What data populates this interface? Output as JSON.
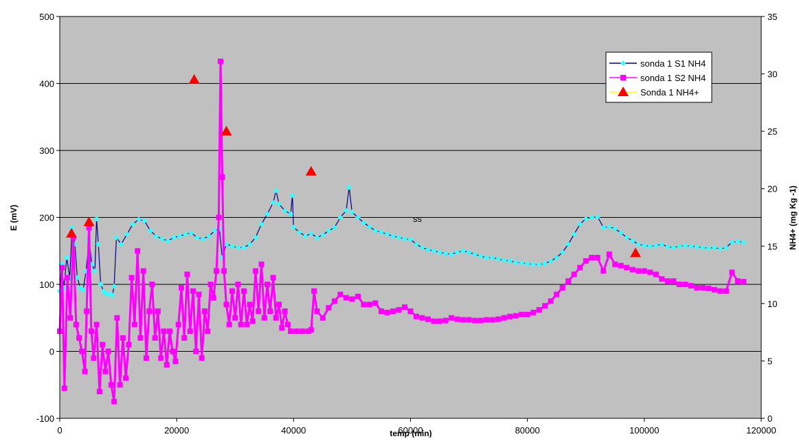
{
  "chart_data": {
    "type": "line",
    "title": "",
    "xlabel": "temp (min)",
    "ylabel": "E (mV)",
    "y2label": "NH4+ (mg Kg -1)",
    "xlim": [
      0,
      120000
    ],
    "ylim": [
      -100,
      500
    ],
    "y2lim": [
      0,
      35
    ],
    "xticks": [
      "0",
      "20000",
      "40000",
      "60000",
      "80000",
      "100000",
      "120000"
    ],
    "yticks": [
      "-100",
      "0",
      "100",
      "200",
      "300",
      "400",
      "500"
    ],
    "y2ticks": [
      "0",
      "5",
      "10",
      "15",
      "20",
      "25",
      "30",
      "35"
    ],
    "grid": "horizontal",
    "background": "#c0c0c0",
    "legend_position": "top-right",
    "annotation": "ss",
    "series": [
      {
        "name": "sonda 1 S1 NH4",
        "axis": "left",
        "color": "#33ffff",
        "line_color": "#000080",
        "marker": "diamond",
        "points": [
          [
            0,
            90
          ],
          [
            300,
            130
          ],
          [
            700,
            95
          ],
          [
            1200,
            140
          ],
          [
            1700,
            110
          ],
          [
            2100,
            185
          ],
          [
            2600,
            160
          ],
          [
            3000,
            110
          ],
          [
            3500,
            95
          ],
          [
            4000,
            92
          ],
          [
            4500,
            120
          ],
          [
            5000,
            165
          ],
          [
            5500,
            130
          ],
          [
            6000,
            120
          ],
          [
            6300,
            198
          ],
          [
            6600,
            160
          ],
          [
            7000,
            100
          ],
          [
            7500,
            90
          ],
          [
            8000,
            86
          ],
          [
            8500,
            86
          ],
          [
            9000,
            84
          ],
          [
            9300,
            97
          ],
          [
            9700,
            170
          ],
          [
            10500,
            160
          ],
          [
            11500,
            175
          ],
          [
            12500,
            190
          ],
          [
            13500,
            197
          ],
          [
            14500,
            195
          ],
          [
            15500,
            180
          ],
          [
            16500,
            172
          ],
          [
            17500,
            168
          ],
          [
            18500,
            165
          ],
          [
            19500,
            170
          ],
          [
            20500,
            172
          ],
          [
            21500,
            175
          ],
          [
            22500,
            177
          ],
          [
            23500,
            170
          ],
          [
            24500,
            168
          ],
          [
            25500,
            172
          ],
          [
            26500,
            180
          ],
          [
            27300,
            183
          ],
          [
            27800,
            140
          ],
          [
            28500,
            160
          ],
          [
            29500,
            157
          ],
          [
            30500,
            155
          ],
          [
            31500,
            155
          ],
          [
            32500,
            160
          ],
          [
            33500,
            170
          ],
          [
            34500,
            190
          ],
          [
            35500,
            205
          ],
          [
            36500,
            222
          ],
          [
            37000,
            240
          ],
          [
            37500,
            220
          ],
          [
            38500,
            210
          ],
          [
            39500,
            205
          ],
          [
            39800,
            233
          ],
          [
            40000,
            185
          ],
          [
            41000,
            178
          ],
          [
            42000,
            172
          ],
          [
            43000,
            176
          ],
          [
            44000,
            170
          ],
          [
            45000,
            174
          ],
          [
            46000,
            180
          ],
          [
            47000,
            185
          ],
          [
            48000,
            200
          ],
          [
            49000,
            210
          ],
          [
            49500,
            245
          ],
          [
            50000,
            208
          ],
          [
            51000,
            200
          ],
          [
            52000,
            192
          ],
          [
            53000,
            186
          ],
          [
            54000,
            180
          ],
          [
            55000,
            178
          ],
          [
            56000,
            175
          ],
          [
            57000,
            172
          ],
          [
            58000,
            170
          ],
          [
            59000,
            168
          ],
          [
            60000,
            167
          ],
          [
            61000,
            160
          ],
          [
            62000,
            155
          ],
          [
            63000,
            152
          ],
          [
            64000,
            150
          ],
          [
            65000,
            148
          ],
          [
            66000,
            146
          ],
          [
            67000,
            145
          ],
          [
            68000,
            148
          ],
          [
            69000,
            150
          ],
          [
            70000,
            148
          ],
          [
            71000,
            145
          ],
          [
            72000,
            142
          ],
          [
            73000,
            140
          ],
          [
            74000,
            140
          ],
          [
            75000,
            138
          ],
          [
            76000,
            136
          ],
          [
            77000,
            135
          ],
          [
            78000,
            133
          ],
          [
            79000,
            132
          ],
          [
            80000,
            131
          ],
          [
            81000,
            130
          ],
          [
            82000,
            130
          ],
          [
            83000,
            131
          ],
          [
            84000,
            135
          ],
          [
            85000,
            140
          ],
          [
            86000,
            148
          ],
          [
            87000,
            160
          ],
          [
            88000,
            175
          ],
          [
            89000,
            190
          ],
          [
            90000,
            198
          ],
          [
            91000,
            200
          ],
          [
            92000,
            201
          ],
          [
            93000,
            185
          ],
          [
            94000,
            186
          ],
          [
            95000,
            183
          ],
          [
            96000,
            177
          ],
          [
            97000,
            170
          ],
          [
            98000,
            165
          ],
          [
            99000,
            160
          ],
          [
            100000,
            158
          ],
          [
            101000,
            157
          ],
          [
            102000,
            158
          ],
          [
            103000,
            160
          ],
          [
            104000,
            156
          ],
          [
            105000,
            155
          ],
          [
            106000,
            157
          ],
          [
            107000,
            158
          ],
          [
            108000,
            157
          ],
          [
            109000,
            156
          ],
          [
            110000,
            155
          ],
          [
            111000,
            154
          ],
          [
            112000,
            155
          ],
          [
            113000,
            153
          ],
          [
            114000,
            155
          ],
          [
            115000,
            163
          ],
          [
            116000,
            164
          ],
          [
            117000,
            163
          ]
        ]
      },
      {
        "name": "sonda 1 S2 NH4",
        "axis": "left",
        "color": "#ff00ff",
        "line_color": "#ff00ff",
        "marker": "square",
        "points": [
          [
            0,
            30
          ],
          [
            400,
            125
          ],
          [
            800,
            -55
          ],
          [
            1300,
            110
          ],
          [
            1800,
            50
          ],
          [
            2300,
            170
          ],
          [
            2800,
            40
          ],
          [
            3300,
            20
          ],
          [
            3800,
            0
          ],
          [
            4300,
            -30
          ],
          [
            4600,
            60
          ],
          [
            5000,
            185
          ],
          [
            5400,
            30
          ],
          [
            5800,
            -10
          ],
          [
            6300,
            40
          ],
          [
            6800,
            -60
          ],
          [
            7300,
            10
          ],
          [
            7800,
            -30
          ],
          [
            8300,
            0
          ],
          [
            8800,
            -50
          ],
          [
            9300,
            -75
          ],
          [
            9800,
            50
          ],
          [
            10300,
            -50
          ],
          [
            10800,
            20
          ],
          [
            11300,
            -40
          ],
          [
            11800,
            10
          ],
          [
            12300,
            110
          ],
          [
            12800,
            40
          ],
          [
            13300,
            150
          ],
          [
            13800,
            20
          ],
          [
            14300,
            120
          ],
          [
            14800,
            -10
          ],
          [
            15300,
            60
          ],
          [
            15800,
            100
          ],
          [
            16300,
            20
          ],
          [
            16800,
            60
          ],
          [
            17300,
            -10
          ],
          [
            17800,
            30
          ],
          [
            18300,
            -20
          ],
          [
            18800,
            30
          ],
          [
            19300,
            0
          ],
          [
            19800,
            -15
          ],
          [
            20300,
            40
          ],
          [
            20800,
            95
          ],
          [
            21300,
            20
          ],
          [
            21800,
            115
          ],
          [
            22300,
            30
          ],
          [
            22800,
            90
          ],
          [
            23300,
            0
          ],
          [
            23800,
            85
          ],
          [
            24300,
            -10
          ],
          [
            24800,
            60
          ],
          [
            25300,
            30
          ],
          [
            25800,
            100
          ],
          [
            26300,
            80
          ],
          [
            26800,
            120
          ],
          [
            27200,
            200
          ],
          [
            27500,
            433
          ],
          [
            27800,
            260
          ],
          [
            28100,
            120
          ],
          [
            28500,
            70
          ],
          [
            29000,
            40
          ],
          [
            29500,
            90
          ],
          [
            30000,
            50
          ],
          [
            30500,
            100
          ],
          [
            31000,
            40
          ],
          [
            31500,
            90
          ],
          [
            32000,
            40
          ],
          [
            32500,
            70
          ],
          [
            33000,
            45
          ],
          [
            33500,
            120
          ],
          [
            34000,
            60
          ],
          [
            34500,
            130
          ],
          [
            35000,
            50
          ],
          [
            35500,
            100
          ],
          [
            36000,
            60
          ],
          [
            36500,
            110
          ],
          [
            37000,
            50
          ],
          [
            37500,
            70
          ],
          [
            38000,
            35
          ],
          [
            38500,
            60
          ],
          [
            39000,
            40
          ],
          [
            39500,
            30
          ],
          [
            40500,
            30
          ],
          [
            41500,
            30
          ],
          [
            42500,
            30
          ],
          [
            43000,
            32
          ],
          [
            43500,
            90
          ],
          [
            44000,
            60
          ],
          [
            45000,
            50
          ],
          [
            46000,
            65
          ],
          [
            47000,
            75
          ],
          [
            48000,
            85
          ],
          [
            49000,
            80
          ],
          [
            50000,
            78
          ],
          [
            51000,
            82
          ],
          [
            52000,
            70
          ],
          [
            53000,
            70
          ],
          [
            54000,
            72
          ],
          [
            55000,
            60
          ],
          [
            56000,
            58
          ],
          [
            57000,
            60
          ],
          [
            58000,
            62
          ],
          [
            59000,
            66
          ],
          [
            60000,
            60
          ],
          [
            61000,
            52
          ],
          [
            62000,
            50
          ],
          [
            63000,
            48
          ],
          [
            64000,
            45
          ],
          [
            65000,
            45
          ],
          [
            66000,
            46
          ],
          [
            67000,
            50
          ],
          [
            68000,
            48
          ],
          [
            69000,
            47
          ],
          [
            70000,
            47
          ],
          [
            71000,
            46
          ],
          [
            72000,
            46
          ],
          [
            73000,
            47
          ],
          [
            74000,
            47
          ],
          [
            75000,
            48
          ],
          [
            76000,
            50
          ],
          [
            77000,
            52
          ],
          [
            78000,
            53
          ],
          [
            79000,
            55
          ],
          [
            80000,
            55
          ],
          [
            81000,
            58
          ],
          [
            82000,
            62
          ],
          [
            83000,
            68
          ],
          [
            84000,
            75
          ],
          [
            85000,
            85
          ],
          [
            86000,
            95
          ],
          [
            87000,
            105
          ],
          [
            88000,
            115
          ],
          [
            89000,
            125
          ],
          [
            90000,
            135
          ],
          [
            91000,
            140
          ],
          [
            92000,
            140
          ],
          [
            93000,
            120
          ],
          [
            94000,
            145
          ],
          [
            95000,
            130
          ],
          [
            96000,
            128
          ],
          [
            97000,
            125
          ],
          [
            98000,
            122
          ],
          [
            99000,
            120
          ],
          [
            100000,
            120
          ],
          [
            101000,
            118
          ],
          [
            102000,
            115
          ],
          [
            103000,
            108
          ],
          [
            104000,
            105
          ],
          [
            105000,
            105
          ],
          [
            106000,
            100
          ],
          [
            107000,
            100
          ],
          [
            108000,
            98
          ],
          [
            109000,
            95
          ],
          [
            110000,
            95
          ],
          [
            111000,
            94
          ],
          [
            112000,
            92
          ],
          [
            113000,
            90
          ],
          [
            114000,
            90
          ],
          [
            115000,
            118
          ],
          [
            116000,
            105
          ],
          [
            117000,
            104
          ]
        ]
      },
      {
        "name": "Sonda 1 NH4+",
        "axis": "right",
        "color": "#ff0000",
        "line_color": "#ffff00",
        "marker": "triangle",
        "points": [
          [
            2000,
            16.1
          ],
          [
            5000,
            17.1
          ],
          [
            23000,
            29.5
          ],
          [
            28500,
            25.0
          ],
          [
            43000,
            21.5
          ],
          [
            98500,
            14.4
          ]
        ]
      }
    ]
  }
}
